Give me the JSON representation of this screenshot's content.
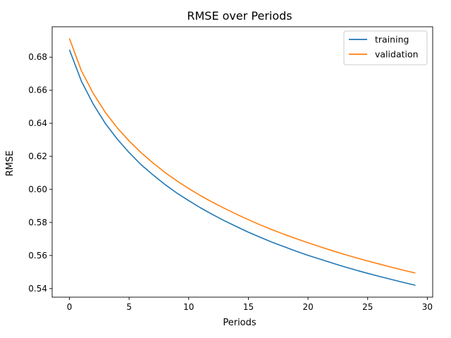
{
  "chart_data": {
    "type": "line",
    "title": "RMSE over Periods",
    "xlabel": "Periods",
    "ylabel": "RMSE",
    "xlim": [
      -1.45,
      30.45
    ],
    "ylim": [
      0.5348,
      0.6984
    ],
    "xticks": [
      0,
      5,
      10,
      15,
      20,
      25,
      30
    ],
    "xtick_labels": [
      "0",
      "5",
      "10",
      "15",
      "20",
      "25",
      "30"
    ],
    "yticks": [
      0.54,
      0.56,
      0.58,
      0.6,
      0.62,
      0.64,
      0.66,
      0.68
    ],
    "ytick_labels": [
      "0.54",
      "0.56",
      "0.58",
      "0.60",
      "0.62",
      "0.64",
      "0.66",
      "0.68"
    ],
    "grid": false,
    "legend_position": "top-right",
    "x": [
      0,
      1,
      2,
      3,
      4,
      5,
      6,
      7,
      8,
      9,
      10,
      11,
      12,
      13,
      14,
      15,
      16,
      17,
      18,
      19,
      20,
      21,
      22,
      23,
      24,
      25,
      26,
      27,
      28,
      29
    ],
    "series": [
      {
        "name": "training",
        "color": "#1f77b4",
        "values": [
          0.6845,
          0.6655,
          0.6515,
          0.64,
          0.6305,
          0.6223,
          0.615,
          0.6088,
          0.603,
          0.5978,
          0.5932,
          0.5888,
          0.5848,
          0.581,
          0.5775,
          0.5741,
          0.571,
          0.568,
          0.5653,
          0.5626,
          0.5601,
          0.5578,
          0.5555,
          0.5533,
          0.5512,
          0.5492,
          0.5473,
          0.5455,
          0.5437,
          0.542
        ]
      },
      {
        "name": "validation",
        "color": "#ff7f0e",
        "values": [
          0.6913,
          0.6718,
          0.658,
          0.6467,
          0.6373,
          0.6293,
          0.6223,
          0.616,
          0.6103,
          0.6052,
          0.6005,
          0.5962,
          0.5922,
          0.5885,
          0.585,
          0.5817,
          0.5785,
          0.5756,
          0.5728,
          0.5702,
          0.5677,
          0.5653,
          0.563,
          0.5608,
          0.5587,
          0.5567,
          0.5548,
          0.5529,
          0.5511,
          0.5494
        ]
      }
    ]
  }
}
